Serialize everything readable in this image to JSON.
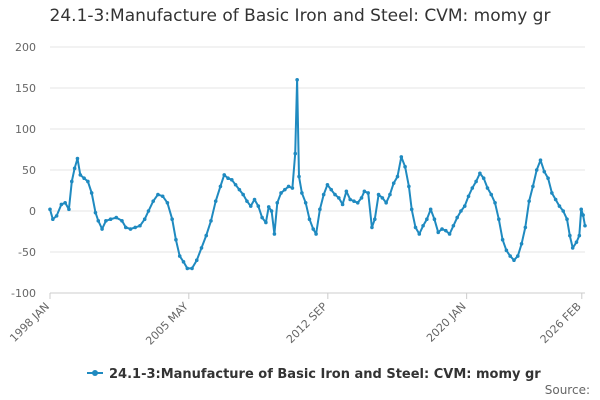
{
  "chart_data": {
    "type": "line",
    "title": "24.1-3:Manufacture of Basic Iron and Steel: CVM: momy gr",
    "xlabel": "",
    "ylabel": "",
    "ylim": [
      -100,
      200
    ],
    "y_ticks": [
      200,
      150,
      100,
      50,
      0,
      -50,
      -100
    ],
    "x_tick_labels": [
      "1998 JAN",
      "2005 MAY",
      "2012 SEP",
      "2020 JAN",
      "2026 FEB"
    ],
    "x_tick_positions": [
      1998.0,
      2005.33,
      2012.67,
      2020.0,
      2026.08
    ],
    "xlim": [
      1998.0,
      2026.25
    ],
    "grid": true,
    "legend_position": "bottom",
    "series": [
      {
        "name": "24.1-3:Manufacture of Basic Iron and Steel: CVM: momy gr",
        "color": "#1f8ac0",
        "points": [
          [
            1998.0,
            2
          ],
          [
            1998.15,
            -10
          ],
          [
            1998.35,
            -6
          ],
          [
            1998.6,
            8
          ],
          [
            1998.8,
            10
          ],
          [
            1999.0,
            2
          ],
          [
            1999.15,
            36
          ],
          [
            1999.3,
            52
          ],
          [
            1999.45,
            64
          ],
          [
            1999.6,
            44
          ],
          [
            1999.8,
            40
          ],
          [
            2000.0,
            36
          ],
          [
            2000.2,
            22
          ],
          [
            2000.4,
            -2
          ],
          [
            2000.55,
            -12
          ],
          [
            2000.75,
            -22
          ],
          [
            2000.95,
            -12
          ],
          [
            2001.2,
            -10
          ],
          [
            2001.5,
            -8
          ],
          [
            2001.8,
            -12
          ],
          [
            2002.0,
            -20
          ],
          [
            2002.25,
            -22
          ],
          [
            2002.5,
            -20
          ],
          [
            2002.75,
            -18
          ],
          [
            2003.0,
            -10
          ],
          [
            2003.2,
            0
          ],
          [
            2003.45,
            12
          ],
          [
            2003.7,
            20
          ],
          [
            2003.95,
            18
          ],
          [
            2004.2,
            10
          ],
          [
            2004.45,
            -10
          ],
          [
            2004.65,
            -35
          ],
          [
            2004.85,
            -55
          ],
          [
            2005.05,
            -62
          ],
          [
            2005.25,
            -70
          ],
          [
            2005.5,
            -70
          ],
          [
            2005.75,
            -60
          ],
          [
            2006.0,
            -45
          ],
          [
            2006.25,
            -30
          ],
          [
            2006.5,
            -12
          ],
          [
            2006.75,
            12
          ],
          [
            2007.0,
            30
          ],
          [
            2007.2,
            44
          ],
          [
            2007.4,
            40
          ],
          [
            2007.6,
            38
          ],
          [
            2007.8,
            32
          ],
          [
            2008.0,
            26
          ],
          [
            2008.2,
            20
          ],
          [
            2008.4,
            12
          ],
          [
            2008.6,
            6
          ],
          [
            2008.8,
            14
          ],
          [
            2009.0,
            6
          ],
          [
            2009.2,
            -8
          ],
          [
            2009.4,
            -14
          ],
          [
            2009.55,
            5
          ],
          [
            2009.7,
            0
          ],
          [
            2009.85,
            -28
          ],
          [
            2010.0,
            10
          ],
          [
            2010.2,
            22
          ],
          [
            2010.4,
            26
          ],
          [
            2010.6,
            30
          ],
          [
            2010.8,
            28
          ],
          [
            2010.95,
            70
          ],
          [
            2011.05,
            160
          ],
          [
            2011.15,
            42
          ],
          [
            2011.3,
            22
          ],
          [
            2011.5,
            10
          ],
          [
            2011.7,
            -10
          ],
          [
            2011.9,
            -22
          ],
          [
            2012.05,
            -28
          ],
          [
            2012.25,
            2
          ],
          [
            2012.45,
            20
          ],
          [
            2012.65,
            32
          ],
          [
            2012.85,
            26
          ],
          [
            2013.05,
            20
          ],
          [
            2013.25,
            16
          ],
          [
            2013.45,
            8
          ],
          [
            2013.65,
            24
          ],
          [
            2013.85,
            14
          ],
          [
            2014.05,
            12
          ],
          [
            2014.25,
            10
          ],
          [
            2014.45,
            16
          ],
          [
            2014.6,
            24
          ],
          [
            2014.8,
            22
          ],
          [
            2015.0,
            -20
          ],
          [
            2015.15,
            -10
          ],
          [
            2015.35,
            20
          ],
          [
            2015.55,
            16
          ],
          [
            2015.75,
            10
          ],
          [
            2015.95,
            20
          ],
          [
            2016.15,
            34
          ],
          [
            2016.35,
            42
          ],
          [
            2016.55,
            66
          ],
          [
            2016.75,
            54
          ],
          [
            2016.95,
            30
          ],
          [
            2017.1,
            2
          ],
          [
            2017.3,
            -20
          ],
          [
            2017.5,
            -28
          ],
          [
            2017.7,
            -18
          ],
          [
            2017.9,
            -10
          ],
          [
            2018.1,
            2
          ],
          [
            2018.3,
            -10
          ],
          [
            2018.5,
            -26
          ],
          [
            2018.7,
            -22
          ],
          [
            2018.9,
            -24
          ],
          [
            2019.1,
            -28
          ],
          [
            2019.3,
            -18
          ],
          [
            2019.5,
            -8
          ],
          [
            2019.7,
            0
          ],
          [
            2019.9,
            6
          ],
          [
            2020.1,
            18
          ],
          [
            2020.3,
            28
          ],
          [
            2020.5,
            36
          ],
          [
            2020.7,
            46
          ],
          [
            2020.9,
            40
          ],
          [
            2021.1,
            28
          ],
          [
            2021.3,
            20
          ],
          [
            2021.5,
            10
          ],
          [
            2021.7,
            -10
          ],
          [
            2021.9,
            -35
          ],
          [
            2022.1,
            -48
          ],
          [
            2022.3,
            -55
          ],
          [
            2022.5,
            -60
          ],
          [
            2022.7,
            -55
          ],
          [
            2022.9,
            -40
          ],
          [
            2023.1,
            -20
          ],
          [
            2023.3,
            12
          ],
          [
            2023.5,
            30
          ],
          [
            2023.7,
            50
          ],
          [
            2023.9,
            62
          ],
          [
            2024.1,
            48
          ],
          [
            2024.3,
            40
          ],
          [
            2024.5,
            22
          ],
          [
            2024.7,
            14
          ],
          [
            2024.9,
            6
          ],
          [
            2025.1,
            0
          ],
          [
            2025.3,
            -10
          ],
          [
            2025.45,
            -30
          ],
          [
            2025.6,
            -45
          ],
          [
            2025.8,
            -38
          ],
          [
            2025.95,
            -30
          ],
          [
            2026.05,
            2
          ],
          [
            2026.15,
            -5
          ],
          [
            2026.25,
            -18
          ]
        ]
      }
    ],
    "source_label": "Source:"
  }
}
